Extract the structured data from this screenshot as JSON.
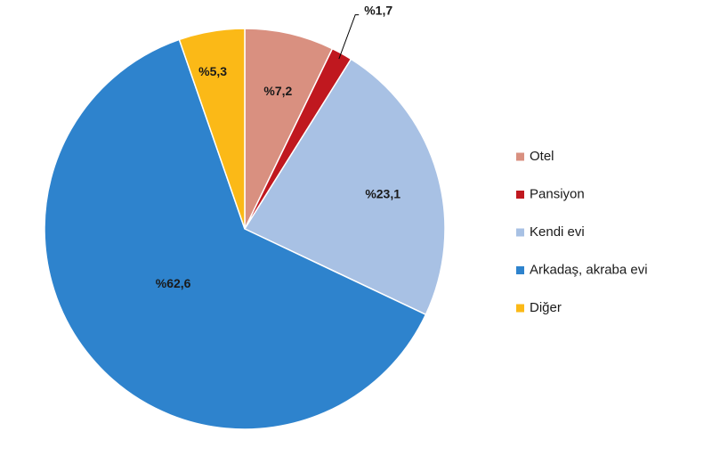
{
  "chart_data": {
    "type": "pie",
    "title": "",
    "legend_position": "right",
    "start_angle_deg": 0,
    "direction": "clockwise",
    "slices": [
      {
        "name": "Otel",
        "value": 7.2,
        "label": "%7,2",
        "color": "#d99080"
      },
      {
        "name": "Pansiyon",
        "value": 1.7,
        "label": "%1,7",
        "color": "#c0181f"
      },
      {
        "name": "Kendi evi",
        "value": 23.1,
        "label": "%23,1",
        "color": "#a8c1e4"
      },
      {
        "name": "Arkadaş, akraba evi",
        "value": 62.6,
        "label": "%62,6",
        "color": "#2e83cd"
      },
      {
        "name": "Diğer",
        "value": 5.3,
        "label": "%5,3",
        "color": "#fbb917"
      }
    ]
  }
}
